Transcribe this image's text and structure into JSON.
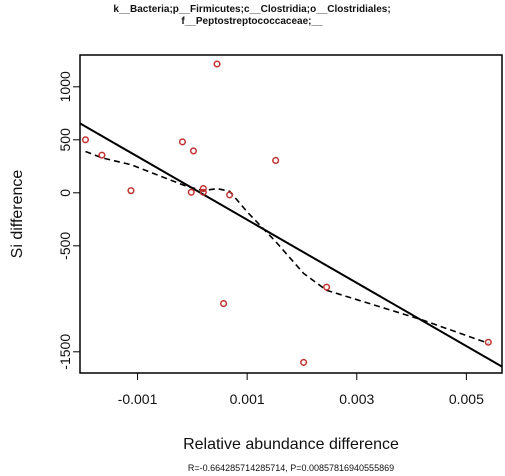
{
  "chart_data": {
    "type": "scatter",
    "title_lines": [
      "k__Bacteria;p__Firmicutes;c__Clostridia;o__Clostridiales;",
      "f__Peptostreptococcaceae;__"
    ],
    "xlabel": "Relative abundance difference",
    "ylabel": "Si difference",
    "xlim": [
      -0.00205,
      0.00565
    ],
    "ylim": [
      -1700,
      1300
    ],
    "xticks": [
      -0.001,
      0.001,
      0.003,
      0.005
    ],
    "xtick_labels": [
      "-0.001",
      "0.001",
      "0.003",
      "0.005"
    ],
    "yticks": [
      -1500,
      -500,
      0,
      500,
      1000
    ],
    "ytick_labels": [
      "-1500",
      "-500",
      "0",
      "500",
      "1000"
    ],
    "points": [
      {
        "x": -0.00195,
        "y": 500
      },
      {
        "x": -0.00165,
        "y": 355
      },
      {
        "x": -0.00112,
        "y": 20
      },
      {
        "x": -0.00018,
        "y": 480
      },
      {
        "x": 2e-05,
        "y": 395
      },
      {
        "x": -2e-05,
        "y": 5
      },
      {
        "x": 0.0002,
        "y": 40
      },
      {
        "x": 0.0002,
        "y": 5
      },
      {
        "x": 0.00045,
        "y": 1215
      },
      {
        "x": 0.00057,
        "y": -1045
      },
      {
        "x": 0.00068,
        "y": -20
      },
      {
        "x": 0.00152,
        "y": 305
      },
      {
        "x": 0.00203,
        "y": -1600
      },
      {
        "x": 0.00245,
        "y": -890
      },
      {
        "x": 0.0054,
        "y": -1410
      }
    ],
    "regression_line": [
      {
        "x": -0.00205,
        "y": 655
      },
      {
        "x": 0.00565,
        "y": -1640
      }
    ],
    "smooth_line": [
      {
        "x": -0.00195,
        "y": 390
      },
      {
        "x": -0.00165,
        "y": 330
      },
      {
        "x": -0.00112,
        "y": 265
      },
      {
        "x": -0.0006,
        "y": 160
      },
      {
        "x": -0.0001,
        "y": 60
      },
      {
        "x": 0.0002,
        "y": 20
      },
      {
        "x": 0.00045,
        "y": 40
      },
      {
        "x": 0.00068,
        "y": 15
      },
      {
        "x": 0.001,
        "y": -180
      },
      {
        "x": 0.00152,
        "y": -460
      },
      {
        "x": 0.00203,
        "y": -760
      },
      {
        "x": 0.00245,
        "y": -920
      },
      {
        "x": 0.0032,
        "y": -1040
      },
      {
        "x": 0.0042,
        "y": -1200
      },
      {
        "x": 0.0054,
        "y": -1420
      }
    ],
    "stats_text": "R=-0.664285714285714, P=0.00857816940555869",
    "grid": false,
    "colors": {
      "point": "#c0312f",
      "line": "#000000"
    }
  }
}
